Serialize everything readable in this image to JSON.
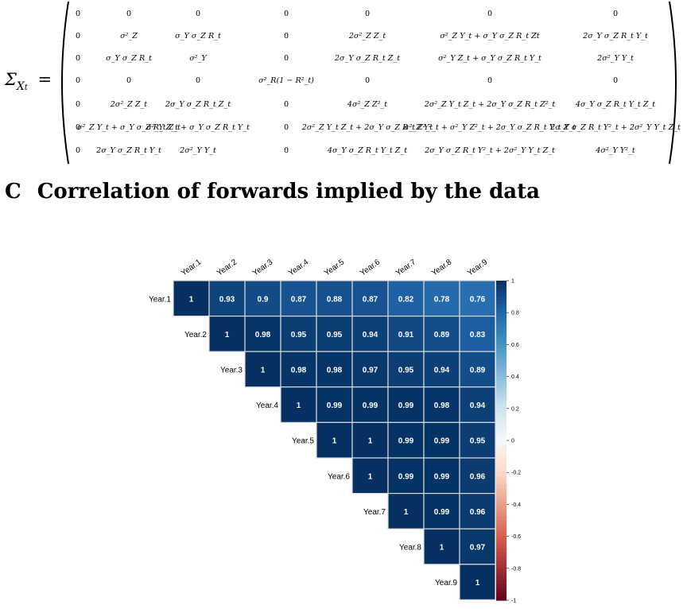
{
  "matrix": {
    "lhs": "Σ",
    "lhs_sub": "X",
    "lhs_subsub": "t",
    "equals": "=",
    "rows": [
      [
        "0",
        "0",
        "0",
        "0",
        "0",
        "0",
        "0"
      ],
      [
        "0",
        "σ²_Z",
        "σ_Y σ_Z R_t",
        "0",
        "2σ²_Z Z_t",
        "σ²_Z Y_t + σ_Y σ_Z R_t Zt",
        "2σ_Y σ_Z R_t Y_t"
      ],
      [
        "0",
        "σ_Y σ_Z R_t",
        "σ²_Y",
        "0",
        "2σ_Y σ_Z R_t Z_t",
        "σ²_Y Z_t + σ_Y σ_Z R_t Y_t",
        "2σ²_Y Y_t"
      ],
      [
        "0",
        "0",
        "0",
        "σ²_R(1 − R²_t)",
        "0",
        "0",
        "0"
      ],
      [
        "0",
        "2σ²_Z Z_t",
        "2σ_Y σ_Z R_t Z_t",
        "0",
        "4σ²_Z Z²_t",
        "2σ²_Z Y_t Z_t + 2σ_Y σ_Z R_t Z²_t",
        "4σ_Y σ_Z R_t Y_t Z_t"
      ],
      [
        "0",
        "σ²_Z Y_t + σ_Y σ_Z R_t Z_t",
        "σ²_Y Z_t + σ_Y σ_Z R_t Y_t",
        "0",
        "2σ²_Z Y_t Z_t + 2σ_Y σ_Z R_t Z²_t",
        "σ²_Z Y²_t + σ²_Y Z²_t + 2σ_Y σ_Z R_t Y_t Z_t",
        "2σ_Y σ_Z R_t Y²_t + 2σ²_Y Y_t Z_t"
      ],
      [
        "0",
        "2σ_Y σ_Z R_t Y_t",
        "2σ²_Y Y_t",
        "0",
        "4σ_Y σ_Z R_t Y_t Z_t",
        "2σ_Y σ_Z R_t Y²_t + 2σ²_Y Y_t Z_t",
        "4σ²_Y Y²_t"
      ]
    ]
  },
  "section": {
    "number": "C",
    "title": "Correlation of forwards implied by the data"
  },
  "chart_data": {
    "type": "heatmap",
    "variables": [
      "Year.1",
      "Year.2",
      "Year.3",
      "Year.4",
      "Year.5",
      "Year.6",
      "Year.7",
      "Year.8",
      "Year.9"
    ],
    "matrix_upper": [
      [
        1,
        0.93,
        0.9,
        0.87,
        0.88,
        0.87,
        0.82,
        0.78,
        0.76
      ],
      [
        null,
        1,
        0.98,
        0.95,
        0.95,
        0.94,
        0.91,
        0.89,
        0.83
      ],
      [
        null,
        null,
        1,
        0.98,
        0.98,
        0.97,
        0.95,
        0.94,
        0.89
      ],
      [
        null,
        null,
        null,
        1,
        0.99,
        0.99,
        0.99,
        0.98,
        0.94
      ],
      [
        null,
        null,
        null,
        null,
        1,
        1,
        0.99,
        0.99,
        0.95
      ],
      [
        null,
        null,
        null,
        null,
        null,
        1,
        0.99,
        0.99,
        0.96
      ],
      [
        null,
        null,
        null,
        null,
        null,
        null,
        1,
        0.99,
        0.96
      ],
      [
        null,
        null,
        null,
        null,
        null,
        null,
        null,
        1,
        0.97
      ],
      [
        null,
        null,
        null,
        null,
        null,
        null,
        null,
        null,
        1
      ]
    ],
    "colorbar_range": [
      -1,
      1
    ],
    "colorbar_ticks": [
      "1",
      "0.8",
      "0.6",
      "0.4",
      "0.2",
      "0",
      "-0.2",
      "-0.4",
      "-0.6",
      "-0.8",
      "-1"
    ],
    "colors": {
      "high": "#053061",
      "mid": "#f7f7f7",
      "low": "#67001f"
    }
  }
}
